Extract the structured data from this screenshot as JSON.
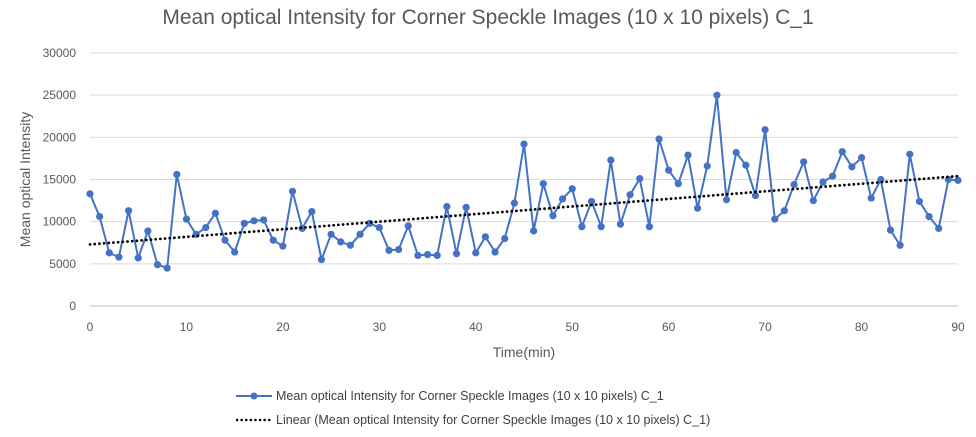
{
  "chart_data": {
    "type": "line",
    "title": "Mean optical Intensity for Corner Speckle Images (10 x 10 pixels) C_1",
    "xlabel": "Time(min)",
    "ylabel": "Mean optical Intensity",
    "xlim": [
      0,
      90
    ],
    "ylim": [
      0,
      30000
    ],
    "x_ticks": [
      0,
      10,
      20,
      30,
      40,
      50,
      60,
      70,
      80,
      90
    ],
    "y_ticks": [
      0,
      5000,
      10000,
      15000,
      20000,
      25000,
      30000
    ],
    "grid": "horizontal",
    "legend_position": "bottom",
    "series": [
      {
        "name": "Mean optical Intensity for Corner Speckle Images (10 x 10 pixels) C_1",
        "color": "#4472C4",
        "marker": "circle",
        "x": [
          0,
          1,
          2,
          3,
          4,
          5,
          6,
          7,
          8,
          9,
          10,
          11,
          12,
          13,
          14,
          15,
          16,
          17,
          18,
          19,
          20,
          21,
          22,
          23,
          24,
          25,
          26,
          27,
          28,
          29,
          30,
          31,
          32,
          33,
          34,
          35,
          36,
          37,
          38,
          39,
          40,
          41,
          42,
          43,
          44,
          45,
          46,
          47,
          48,
          49,
          50,
          51,
          52,
          53,
          54,
          55,
          56,
          57,
          58,
          59,
          60,
          61,
          62,
          63,
          64,
          65,
          66,
          67,
          68,
          69,
          70,
          71,
          72,
          73,
          74,
          75,
          76,
          77,
          78,
          79,
          80,
          81,
          82,
          83,
          84,
          85,
          86,
          87,
          88,
          89,
          90
        ],
        "values": [
          13300,
          10600,
          6300,
          5800,
          11300,
          5700,
          8900,
          4900,
          4500,
          15600,
          10300,
          8500,
          9300,
          11000,
          7800,
          6400,
          9800,
          10100,
          10200,
          7800,
          7100,
          13600,
          9200,
          11200,
          5500,
          8500,
          7600,
          7200,
          8500,
          9800,
          9300,
          6600,
          6700,
          9500,
          6000,
          6100,
          6000,
          11800,
          6200,
          11700,
          6300,
          8200,
          6400,
          8000,
          12200,
          19200,
          8900,
          14500,
          10700,
          12700,
          13900,
          9400,
          12400,
          9400,
          17300,
          9700,
          13200,
          15100,
          9400,
          19800,
          16100,
          14500,
          17900,
          11600,
          16600,
          25000,
          12600,
          18200,
          16700,
          13100,
          20900,
          10300,
          11300,
          14400,
          17100,
          12500,
          14700,
          15400,
          18300,
          16500,
          17600,
          12800,
          15000,
          9000,
          7200,
          18000,
          12400,
          10600,
          9200,
          15000,
          14900
        ]
      },
      {
        "name": "Linear (Mean optical Intensity for Corner Speckle Images (10 x 10 pixels) C_1)",
        "color": "#000000",
        "style": "dotted",
        "trendline": "linear",
        "x": [
          0,
          90
        ],
        "values": [
          7300,
          15400
        ]
      }
    ]
  }
}
